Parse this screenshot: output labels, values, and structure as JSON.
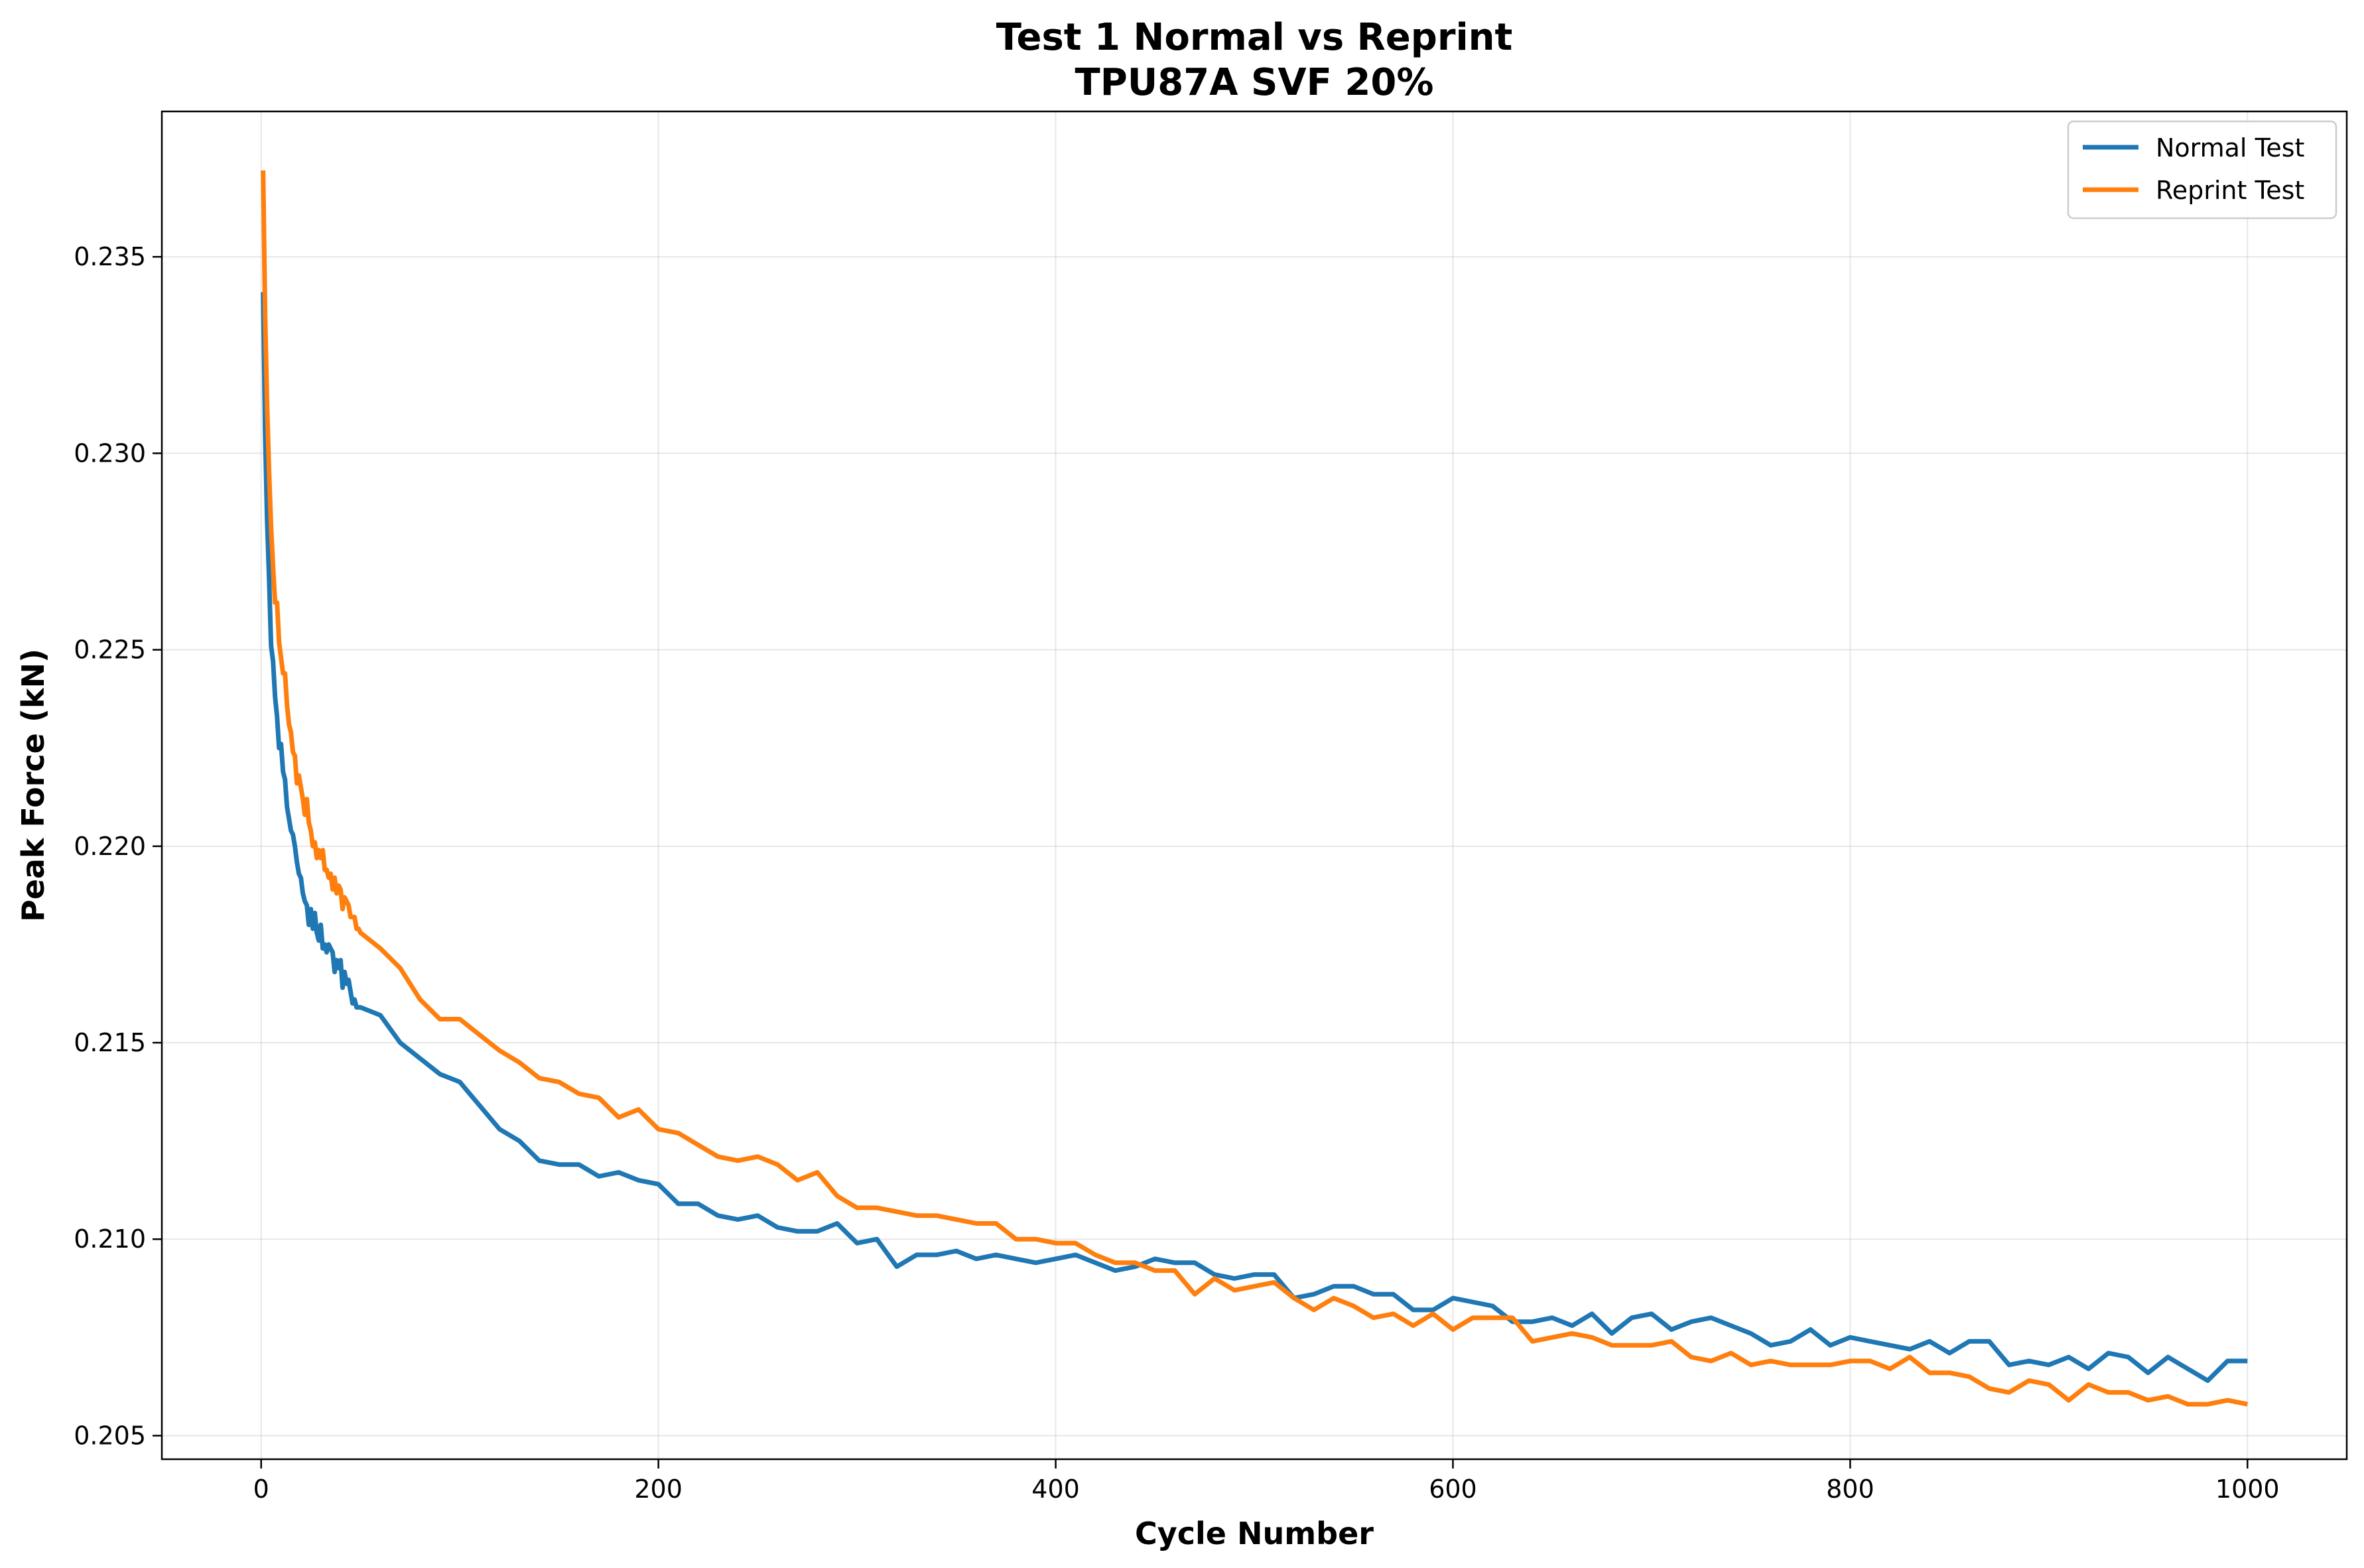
{
  "chart_data": {
    "type": "line",
    "title": "Test 1 Normal vs Reprint",
    "subtitle": "TPU87A SVF 20%",
    "xlabel": "Cycle Number",
    "ylabel": "Peak Force (kN)",
    "xlim": [
      -50,
      1050
    ],
    "ylim": [
      0.2044,
      0.2387
    ],
    "xticks": [
      0,
      200,
      400,
      600,
      800,
      1000
    ],
    "xtick_labels": [
      "0",
      "200",
      "400",
      "600",
      "800",
      "1000"
    ],
    "yticks": [
      0.205,
      0.21,
      0.215,
      0.22,
      0.225,
      0.23,
      0.235
    ],
    "ytick_labels": [
      "0.205",
      "0.210",
      "0.215",
      "0.220",
      "0.225",
      "0.230",
      "0.235"
    ],
    "grid": true,
    "legend_position": "top-right",
    "series": [
      {
        "name": "Normal Test",
        "color": "#1f77b4",
        "x": [
          1,
          2,
          3,
          4,
          5,
          6,
          7,
          8,
          9,
          10,
          11,
          12,
          13,
          14,
          15,
          16,
          17,
          18,
          19,
          20,
          21,
          22,
          23,
          24,
          25,
          26,
          27,
          28,
          29,
          30,
          31,
          32,
          33,
          34,
          35,
          36,
          37,
          38,
          39,
          40,
          41,
          42,
          43,
          44,
          45,
          46,
          47,
          48,
          49,
          50,
          60,
          70,
          80,
          90,
          100,
          110,
          120,
          130,
          140,
          150,
          160,
          170,
          180,
          190,
          200,
          210,
          220,
          230,
          240,
          250,
          260,
          270,
          280,
          290,
          300,
          310,
          320,
          330,
          340,
          350,
          360,
          370,
          380,
          390,
          400,
          410,
          420,
          430,
          440,
          450,
          460,
          470,
          480,
          490,
          500,
          510,
          520,
          530,
          540,
          550,
          560,
          570,
          580,
          590,
          600,
          610,
          620,
          630,
          640,
          650,
          660,
          670,
          680,
          690,
          700,
          710,
          720,
          730,
          740,
          750,
          760,
          770,
          780,
          790,
          800,
          810,
          820,
          830,
          840,
          850,
          860,
          870,
          880,
          890,
          900,
          910,
          920,
          930,
          940,
          950,
          960,
          970,
          980,
          990,
          1000
        ],
        "y": [
          0.2341,
          0.2305,
          0.2283,
          0.2268,
          0.2251,
          0.2247,
          0.2238,
          0.2233,
          0.2225,
          0.2226,
          0.2219,
          0.2217,
          0.221,
          0.2207,
          0.2204,
          0.2203,
          0.22,
          0.2196,
          0.2193,
          0.2192,
          0.2188,
          0.2186,
          0.2185,
          0.218,
          0.2184,
          0.2179,
          0.2183,
          0.2178,
          0.2176,
          0.218,
          0.2174,
          0.2175,
          0.2173,
          0.2175,
          0.2174,
          0.2173,
          0.2168,
          0.2171,
          0.2169,
          0.2171,
          0.2164,
          0.2168,
          0.2165,
          0.2166,
          0.2163,
          0.216,
          0.2161,
          0.2159,
          0.2159,
          0.2159,
          0.2157,
          0.215,
          0.2146,
          0.2142,
          0.214,
          0.2134,
          0.2128,
          0.2125,
          0.212,
          0.2119,
          0.2119,
          0.2116,
          0.2117,
          0.2115,
          0.2114,
          0.2109,
          0.2109,
          0.2106,
          0.2105,
          0.2106,
          0.2103,
          0.2102,
          0.2102,
          0.2104,
          0.2099,
          0.21,
          0.2093,
          0.2096,
          0.2096,
          0.2097,
          0.2095,
          0.2096,
          0.2095,
          0.2094,
          0.2095,
          0.2096,
          0.2094,
          0.2092,
          0.2093,
          0.2095,
          0.2094,
          0.2094,
          0.2091,
          0.209,
          0.2091,
          0.2091,
          0.2085,
          0.2086,
          0.2088,
          0.2088,
          0.2086,
          0.2086,
          0.2082,
          0.2082,
          0.2085,
          0.2084,
          0.2083,
          0.2079,
          0.2079,
          0.208,
          0.2078,
          0.2081,
          0.2076,
          0.208,
          0.2081,
          0.2077,
          0.2079,
          0.208,
          0.2078,
          0.2076,
          0.2073,
          0.2074,
          0.2077,
          0.2073,
          0.2075,
          0.2074,
          0.2073,
          0.2072,
          0.2074,
          0.2071,
          0.2074,
          0.2074,
          0.2068,
          0.2069,
          0.2068,
          0.207,
          0.2067,
          0.2071,
          0.207,
          0.2066,
          0.207,
          0.2067,
          0.2064,
          0.2069,
          0.2069
        ]
      },
      {
        "name": "Reprint Test",
        "color": "#ff7f0e",
        "x": [
          1,
          2,
          3,
          4,
          5,
          6,
          7,
          8,
          9,
          10,
          11,
          12,
          13,
          14,
          15,
          16,
          17,
          18,
          19,
          20,
          21,
          22,
          23,
          24,
          25,
          26,
          27,
          28,
          29,
          30,
          31,
          32,
          33,
          34,
          35,
          36,
          37,
          38,
          39,
          40,
          41,
          42,
          43,
          44,
          45,
          46,
          47,
          48,
          49,
          50,
          60,
          70,
          80,
          90,
          100,
          110,
          120,
          130,
          140,
          150,
          160,
          170,
          180,
          190,
          200,
          210,
          220,
          230,
          240,
          250,
          260,
          270,
          280,
          290,
          300,
          310,
          320,
          330,
          340,
          350,
          360,
          370,
          380,
          390,
          400,
          410,
          420,
          430,
          440,
          450,
          460,
          470,
          480,
          490,
          500,
          510,
          520,
          530,
          540,
          550,
          560,
          570,
          580,
          590,
          600,
          610,
          620,
          630,
          640,
          650,
          660,
          670,
          680,
          690,
          700,
          710,
          720,
          730,
          740,
          750,
          760,
          770,
          780,
          790,
          800,
          810,
          820,
          830,
          840,
          850,
          860,
          870,
          880,
          890,
          900,
          910,
          920,
          930,
          940,
          950,
          960,
          970,
          980,
          990,
          1000
        ],
        "y": [
          0.2372,
          0.2335,
          0.2312,
          0.2295,
          0.2281,
          0.2271,
          0.2262,
          0.2262,
          0.2252,
          0.2248,
          0.2244,
          0.2244,
          0.2236,
          0.2231,
          0.2229,
          0.2224,
          0.2223,
          0.2216,
          0.2218,
          0.2215,
          0.2212,
          0.2208,
          0.2212,
          0.2206,
          0.2204,
          0.22,
          0.2201,
          0.2197,
          0.2199,
          0.2197,
          0.2199,
          0.2194,
          0.2194,
          0.2192,
          0.2193,
          0.2189,
          0.2192,
          0.2188,
          0.219,
          0.2189,
          0.2184,
          0.2187,
          0.2186,
          0.2185,
          0.2182,
          0.2182,
          0.2182,
          0.2179,
          0.2179,
          0.2178,
          0.2174,
          0.2169,
          0.2161,
          0.2156,
          0.2156,
          0.2152,
          0.2148,
          0.2145,
          0.2141,
          0.214,
          0.2137,
          0.2136,
          0.2131,
          0.2133,
          0.2128,
          0.2127,
          0.2124,
          0.2121,
          0.212,
          0.2121,
          0.2119,
          0.2115,
          0.2117,
          0.2111,
          0.2108,
          0.2108,
          0.2107,
          0.2106,
          0.2106,
          0.2105,
          0.2104,
          0.2104,
          0.21,
          0.21,
          0.2099,
          0.2099,
          0.2096,
          0.2094,
          0.2094,
          0.2092,
          0.2092,
          0.2086,
          0.209,
          0.2087,
          0.2088,
          0.2089,
          0.2085,
          0.2082,
          0.2085,
          0.2083,
          0.208,
          0.2081,
          0.2078,
          0.2081,
          0.2077,
          0.208,
          0.208,
          0.208,
          0.2074,
          0.2075,
          0.2076,
          0.2075,
          0.2073,
          0.2073,
          0.2073,
          0.2074,
          0.207,
          0.2069,
          0.2071,
          0.2068,
          0.2069,
          0.2068,
          0.2068,
          0.2068,
          0.2069,
          0.2069,
          0.2067,
          0.207,
          0.2066,
          0.2066,
          0.2065,
          0.2062,
          0.2061,
          0.2064,
          0.2063,
          0.2059,
          0.2063,
          0.2061,
          0.2061,
          0.2059,
          0.206,
          0.2058,
          0.2058,
          0.2059,
          0.2058
        ]
      }
    ]
  }
}
